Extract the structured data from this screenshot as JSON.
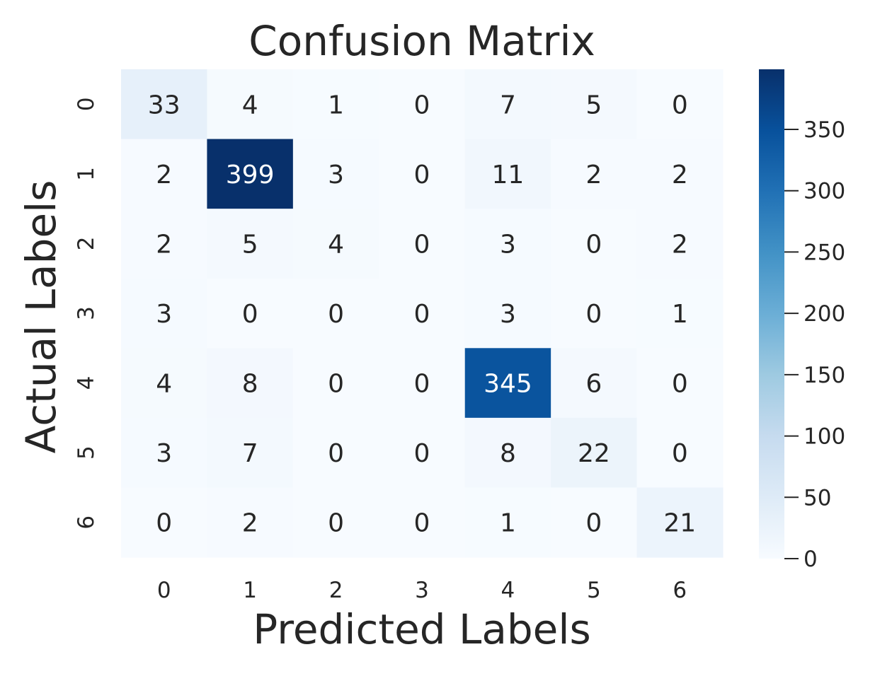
{
  "chart_data": {
    "type": "heatmap",
    "title": "Confusion Matrix",
    "xlabel": "Predicted Labels",
    "ylabel": "Actual Labels",
    "x_categories": [
      "0",
      "1",
      "2",
      "3",
      "4",
      "5",
      "6"
    ],
    "y_categories": [
      "0",
      "1",
      "2",
      "3",
      "4",
      "5",
      "6"
    ],
    "values": [
      [
        33,
        4,
        1,
        0,
        7,
        5,
        0
      ],
      [
        2,
        399,
        3,
        0,
        11,
        2,
        2
      ],
      [
        2,
        5,
        4,
        0,
        3,
        0,
        2
      ],
      [
        3,
        0,
        0,
        0,
        3,
        0,
        1
      ],
      [
        4,
        8,
        0,
        0,
        345,
        6,
        0
      ],
      [
        3,
        7,
        0,
        0,
        8,
        22,
        0
      ],
      [
        0,
        2,
        0,
        0,
        1,
        0,
        21
      ]
    ],
    "colormap": "Blues",
    "colorbar": {
      "range": [
        0,
        399
      ],
      "ticks": [
        0,
        50,
        100,
        150,
        200,
        250,
        300,
        350
      ]
    },
    "colors": {
      "text_dark": "#262626",
      "text_light": "#ffffff"
    }
  }
}
